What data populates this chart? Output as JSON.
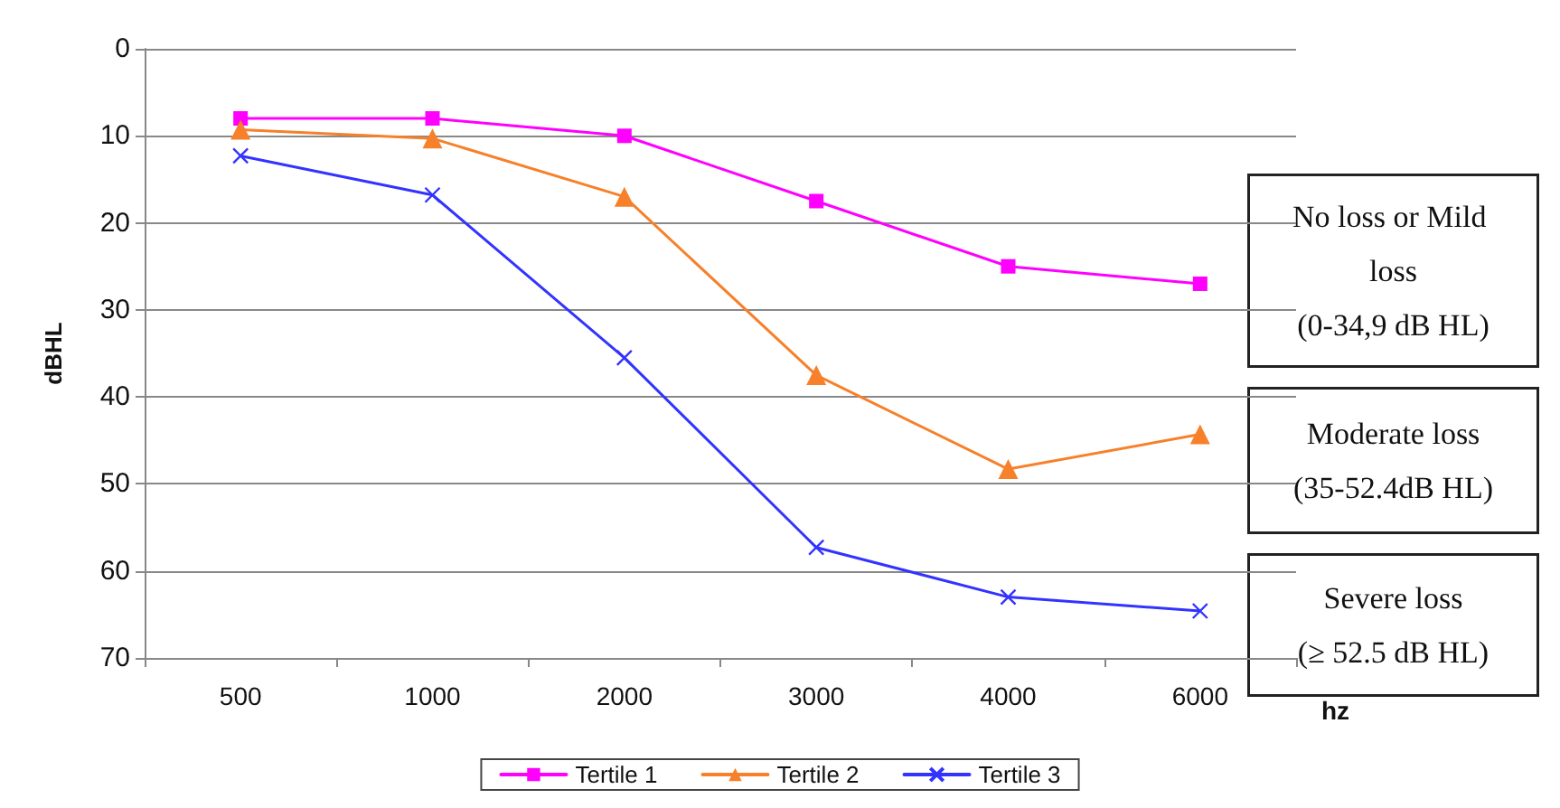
{
  "chart_data": {
    "type": "line",
    "xlabel": "hz",
    "ylabel": "dBHL",
    "categories": [
      "500",
      "1000",
      "2000",
      "3000",
      "4000",
      "6000"
    ],
    "series": [
      {
        "name": "Tertile 1",
        "color": "#ff00ff",
        "marker": "square",
        "values": [
          8,
          8,
          10,
          17.5,
          25,
          27
        ]
      },
      {
        "name": "Tertile 2",
        "color": "#f7802a",
        "marker": "triangle",
        "values": [
          9.3,
          10.3,
          17,
          37.5,
          48.3,
          44.3
        ]
      },
      {
        "name": "Tertile 3",
        "color": "#3333ff",
        "marker": "cross",
        "values": [
          12.3,
          16.8,
          35.5,
          57.3,
          63,
          64.6
        ]
      }
    ],
    "ylim": [
      70,
      0
    ],
    "yticks": [
      0,
      10,
      20,
      30,
      40,
      50,
      60,
      70
    ],
    "grid": "y",
    "legend": "bottom",
    "line_style": "solid",
    "annotations": [
      "No loss or Mild loss\n(0-34,9 dB HL)",
      "Moderate loss\n(35-52.4dB HL)",
      "Severe loss\n(≥ 52.5 dB HL)"
    ]
  }
}
